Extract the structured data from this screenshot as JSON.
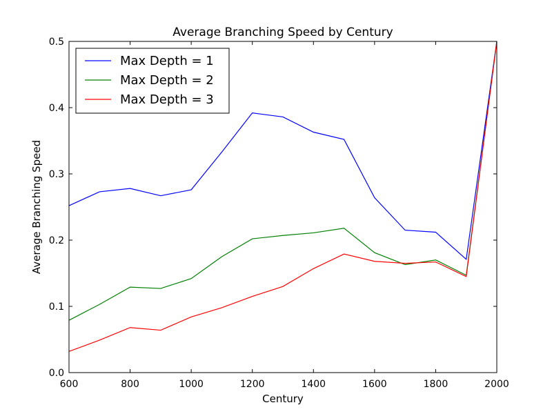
{
  "chart_data": {
    "type": "line",
    "title": "Average Branching Speed by Century",
    "xlabel": "Century",
    "ylabel": "Average Branching Speed",
    "xlim": [
      600,
      2000
    ],
    "ylim": [
      0.0,
      0.5
    ],
    "x_ticks": [
      "600",
      "800",
      "1000",
      "1200",
      "1400",
      "1600",
      "1800",
      "2000"
    ],
    "y_ticks": [
      "0.0",
      "0.1",
      "0.2",
      "0.3",
      "0.4",
      "0.5"
    ],
    "grid": false,
    "legend_position": "top-left",
    "x": [
      600,
      700,
      800,
      900,
      1000,
      1100,
      1200,
      1300,
      1400,
      1500,
      1600,
      1700,
      1800,
      1900,
      2000
    ],
    "series": [
      {
        "name": "Max Depth = 1",
        "color": "#0000ff",
        "values": [
          0.252,
          0.273,
          0.278,
          0.267,
          0.276,
          0.333,
          0.392,
          0.386,
          0.363,
          0.352,
          0.264,
          0.215,
          0.212,
          0.171,
          0.5
        ]
      },
      {
        "name": "Max Depth = 2",
        "color": "#008000",
        "values": [
          0.079,
          0.103,
          0.129,
          0.127,
          0.142,
          0.175,
          0.202,
          0.207,
          0.211,
          0.218,
          0.181,
          0.163,
          0.17,
          0.147,
          0.5
        ]
      },
      {
        "name": "Max Depth = 3",
        "color": "#ff0000",
        "values": [
          0.032,
          0.049,
          0.068,
          0.064,
          0.084,
          0.098,
          0.115,
          0.13,
          0.157,
          0.179,
          0.168,
          0.165,
          0.167,
          0.145,
          0.5
        ]
      }
    ]
  }
}
